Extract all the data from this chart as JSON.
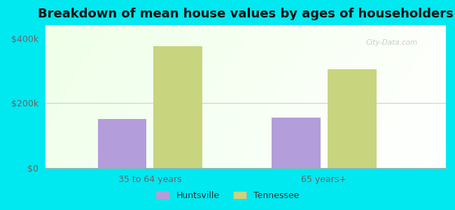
{
  "title": "Breakdown of mean house values by ages of householders",
  "categories": [
    "35 to 64 years",
    "65 years+"
  ],
  "huntsville_values": [
    150000,
    155000
  ],
  "tennessee_values": [
    375000,
    305000
  ],
  "huntsville_color": "#b39ddb",
  "tennessee_color": "#c8d47e",
  "background_color": "#00e8f0",
  "ylim": [
    0,
    440000
  ],
  "yticks": [
    0,
    200000,
    400000
  ],
  "ytick_labels": [
    "$0",
    "$200k",
    "$400k"
  ],
  "legend_huntsville": "Huntsville",
  "legend_tennessee": "Tennessee",
  "bar_width": 0.28,
  "title_fontsize": 13,
  "tick_fontsize": 9,
  "legend_fontsize": 9,
  "watermark": "City-Data.com"
}
